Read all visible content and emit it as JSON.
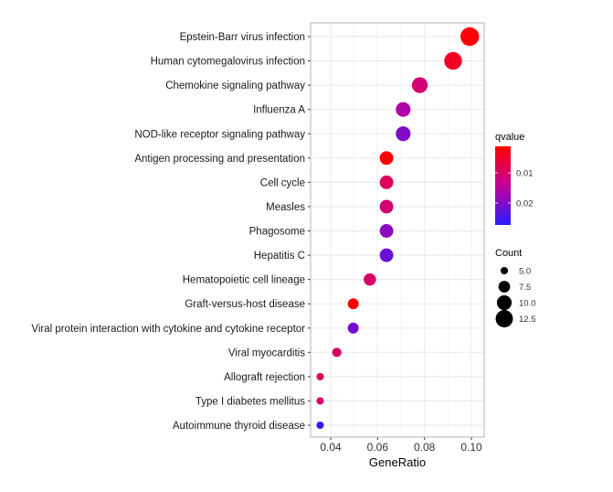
{
  "chart_data": {
    "type": "scatter",
    "title": "",
    "xlabel": "GeneRatio",
    "ylabel": "",
    "xlim": [
      0.032,
      0.103
    ],
    "xticks": [
      0.04,
      0.06,
      0.08,
      0.1
    ],
    "xtick_labels": [
      "0.04",
      "0.06",
      "0.08",
      "0.10"
    ],
    "grid": true,
    "categories": [
      "Epstein-Barr virus infection",
      "Human cytomegalovirus infection",
      "Chemokine signaling pathway",
      "Influenza A",
      "NOD-like receptor signaling pathway",
      "Antigen processing and presentation",
      "Cell cycle",
      "Measles",
      "Phagosome",
      "Hepatitis C",
      "Hematopoietic cell lineage",
      "Graft-versus-host disease",
      "Viral protein interaction with cytokine and cytokine receptor",
      "Viral myocarditis",
      "Allograft rejection",
      "Type I diabetes mellitus",
      "Autoimmune thyroid disease"
    ],
    "gene_ratio": [
      0.0993,
      0.0922,
      0.078,
      0.0709,
      0.0709,
      0.0638,
      0.0638,
      0.0638,
      0.0638,
      0.0638,
      0.0567,
      0.0496,
      0.0496,
      0.0426,
      0.0355,
      0.0355,
      0.0355
    ],
    "count": [
      14,
      13,
      11,
      10,
      10,
      9,
      9,
      9,
      9,
      9,
      8,
      7,
      7,
      6,
      5,
      5,
      5
    ],
    "qvalue": [
      0.0015,
      0.004,
      0.011,
      0.016,
      0.02,
      0.0013,
      0.009,
      0.011,
      0.019,
      0.022,
      0.01,
      0.0015,
      0.021,
      0.01,
      0.009,
      0.01,
      0.027
    ],
    "color_legend": {
      "title": "qvalue",
      "range": [
        0.0012,
        0.0273
      ],
      "ticks": [
        0.01,
        0.02
      ],
      "tick_labels": [
        "0.01",
        "0.02"
      ],
      "low_color": "#FF0000",
      "high_color": "#0000FF",
      "placement": "right"
    },
    "size_legend": {
      "title": "Count",
      "values": [
        5,
        7.5,
        10,
        12.5
      ],
      "labels": [
        "5.0",
        "7.5",
        "10.0",
        "12.5"
      ],
      "placement": "right"
    }
  }
}
